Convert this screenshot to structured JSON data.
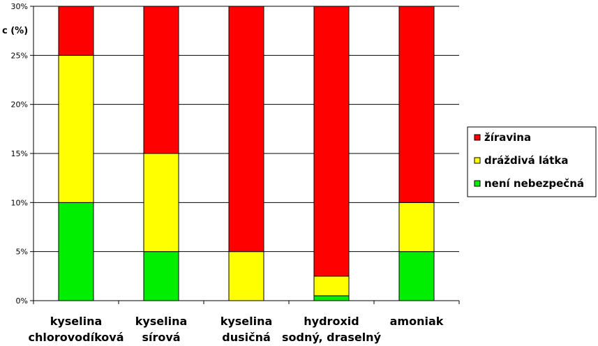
{
  "chart_data": {
    "type": "bar",
    "stacked": true,
    "ylabel": "c (%)",
    "ylim": [
      0,
      30
    ],
    "yticks": [
      "0%",
      "5%",
      "10%",
      "15%",
      "20%",
      "25%",
      "30%"
    ],
    "grid": true,
    "legend_position": "right",
    "categories": [
      [
        "kyselina",
        "chlorovodíková"
      ],
      [
        "kyselina",
        "sírová"
      ],
      [
        "kyselina",
        "dusičná"
      ],
      [
        "hydroxid",
        "sodný, draselný"
      ],
      [
        "amoniak"
      ]
    ],
    "series": [
      {
        "name": "není nebezpečná",
        "color": "#00ee00",
        "values": [
          10,
          5,
          0,
          0.5,
          5
        ]
      },
      {
        "name": "dráždivá látka",
        "color": "#ffff00",
        "values": [
          15,
          10,
          5,
          2,
          5
        ]
      },
      {
        "name": "žíravina",
        "color": "#ff0000",
        "values": [
          5,
          15,
          25,
          27.5,
          20
        ]
      }
    ],
    "legend_order": [
      "žíravina",
      "dráždivá látka",
      "není nebezpečná"
    ]
  }
}
